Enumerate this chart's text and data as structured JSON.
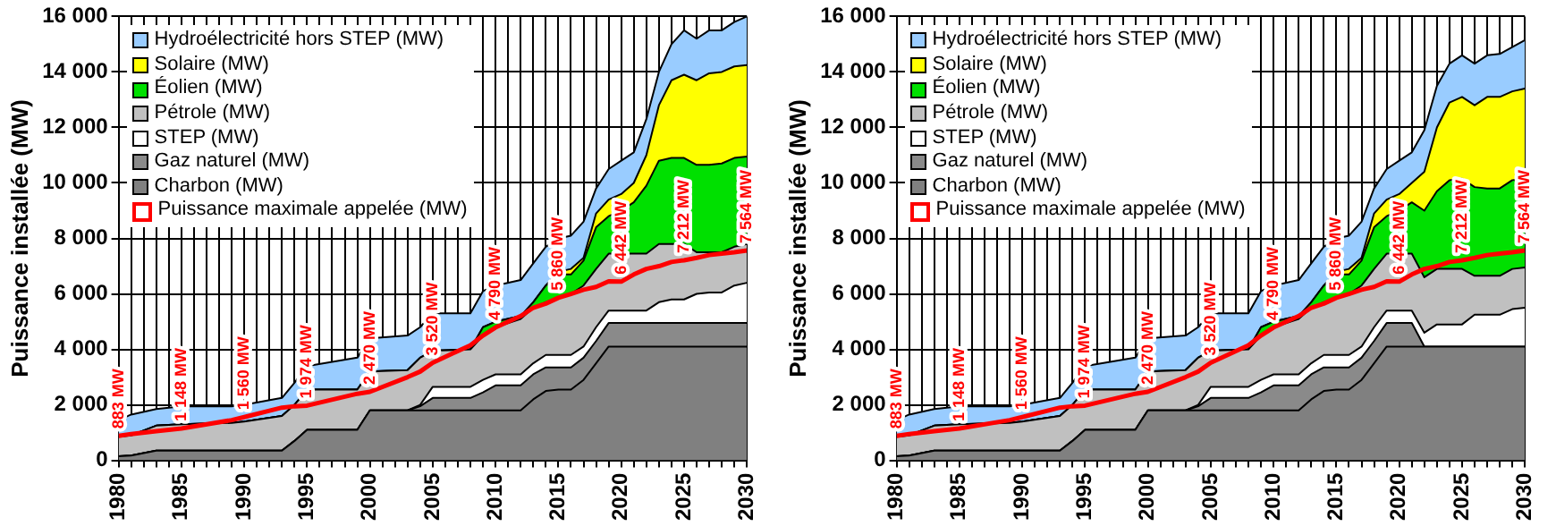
{
  "chart_data": [
    {
      "type": "area",
      "stacked": true,
      "grid": true,
      "legend": "top left",
      "ylabel": "Puissance installée (MW)",
      "x": [
        1980,
        1981,
        1983,
        1985,
        1989,
        1990,
        1993,
        1994,
        1995,
        1999,
        2000,
        2003,
        2004,
        2005,
        2008,
        2009,
        2010,
        2012,
        2013,
        2014,
        2015,
        2016,
        2017,
        2018,
        2019,
        2020,
        2021,
        2022,
        2023,
        2024,
        2025,
        2026,
        2027,
        2028,
        2029,
        2030
      ],
      "xlim": [
        1980,
        2030
      ],
      "xticks": [
        1980,
        {
          "value": 1981,
          "label": null
        },
        {
          "value": 1982,
          "label": null
        },
        {
          "value": 1983,
          "label": null
        },
        {
          "value": 1984,
          "label": null
        },
        1985,
        {
          "value": 1986,
          "label": null
        },
        {
          "value": 1987,
          "label": null
        },
        {
          "value": 1988,
          "label": null
        },
        {
          "value": 1989,
          "label": null
        },
        1990,
        {
          "value": 1991,
          "label": null
        },
        {
          "value": 1992,
          "label": null
        },
        {
          "value": 1993,
          "label": null
        },
        {
          "value": 1994,
          "label": null
        },
        1995,
        {
          "value": 1996,
          "label": null
        },
        {
          "value": 1997,
          "label": null
        },
        {
          "value": 1998,
          "label": null
        },
        {
          "value": 1999,
          "label": null
        },
        2000,
        {
          "value": 2001,
          "label": null
        },
        {
          "value": 2002,
          "label": null
        },
        {
          "value": 2003,
          "label": null
        },
        {
          "value": 2004,
          "label": null
        },
        2005,
        {
          "value": 2006,
          "label": null
        },
        {
          "value": 2007,
          "label": null
        },
        {
          "value": 2008,
          "label": null
        },
        {
          "value": 2009,
          "label": null
        },
        2010,
        {
          "value": 2011,
          "label": null
        },
        {
          "value": 2012,
          "label": null
        },
        {
          "value": 2013,
          "label": null
        },
        {
          "value": 2014,
          "label": null
        },
        2015,
        {
          "value": 2016,
          "label": null
        },
        {
          "value": 2017,
          "label": null
        },
        {
          "value": 2018,
          "label": null
        },
        {
          "value": 2019,
          "label": null
        },
        2020,
        {
          "value": 2021,
          "label": null
        },
        {
          "value": 2022,
          "label": null
        },
        {
          "value": 2023,
          "label": null
        },
        {
          "value": 2024,
          "label": null
        },
        2025,
        {
          "value": 2026,
          "label": null
        },
        {
          "value": 2027,
          "label": null
        },
        {
          "value": 2028,
          "label": null
        },
        {
          "value": 2029,
          "label": null
        },
        2030
      ],
      "ylim": [
        0,
        16000
      ],
      "yticks": [
        0,
        {
          "value": 2000,
          "label": "2 000"
        },
        {
          "value": 4000,
          "label": "4 000"
        },
        {
          "value": 6000,
          "label": "6 000"
        },
        {
          "value": 8000,
          "label": "8 000"
        },
        {
          "value": 10000,
          "label": "10 000"
        },
        {
          "value": 12000,
          "label": "12 000"
        },
        {
          "value": 14000,
          "label": "14 000"
        },
        {
          "value": 16000,
          "label": "16 000"
        }
      ],
      "series": [
        {
          "name": "Charbon (MW)",
          "type": "area",
          "color": "#808080",
          "values": [
            150,
            170,
            350,
            350,
            350,
            350,
            350,
            700,
            1100,
            1100,
            1800,
            1800,
            1800,
            1800,
            1800,
            1800,
            1800,
            1800,
            2200,
            2500,
            2550,
            2550,
            2900,
            3500,
            4100,
            4100,
            4100,
            4100,
            4100,
            4100,
            4100,
            4100,
            4100,
            4100,
            4100,
            4100
          ]
        },
        {
          "name": "Gaz naturel (MW)",
          "type": "area",
          "color": "#8a8a8a",
          "values": [
            0,
            0,
            0,
            0,
            0,
            0,
            0,
            0,
            0,
            0,
            0,
            0,
            150,
            450,
            450,
            650,
            900,
            900,
            900,
            850,
            800,
            800,
            800,
            800,
            850,
            850,
            850,
            850,
            850,
            850,
            850,
            850,
            850,
            850,
            850,
            850
          ]
        },
        {
          "name": "STEP (MW)",
          "type": "area",
          "color": "#ffffff",
          "values": [
            0,
            0,
            0,
            0,
            0,
            0,
            0,
            0,
            0,
            0,
            0,
            0,
            50,
            400,
            400,
            450,
            400,
            400,
            400,
            450,
            450,
            450,
            400,
            500,
            450,
            450,
            450,
            450,
            750,
            850,
            850,
            1050,
            1100,
            1100,
            1350,
            1450
          ]
        },
        {
          "name": "Pétrole (MW)",
          "type": "area",
          "color": "#c0c0c0",
          "values": [
            700,
            730,
            900,
            950,
            1000,
            1050,
            1250,
            1300,
            1450,
            1450,
            1400,
            1450,
            1700,
            1300,
            1350,
            1600,
            1700,
            2000,
            2000,
            1900,
            2050,
            2200,
            2200,
            2100,
            2050,
            2050,
            2050,
            2050,
            2100,
            2000,
            2000,
            1500,
            1450,
            1450,
            1400,
            1400
          ]
        },
        {
          "name": "Éolien (MW)",
          "type": "area",
          "color": "#00e000",
          "values": [
            0,
            0,
            0,
            0,
            0,
            0,
            0,
            0,
            0,
            0,
            0,
            0,
            0,
            0,
            0,
            300,
            200,
            100,
            200,
            600,
            850,
            700,
            900,
            1500,
            1350,
            1550,
            1850,
            2450,
            3000,
            3100,
            3100,
            3150,
            3150,
            3200,
            3200,
            3150
          ]
        },
        {
          "name": "Solaire (MW)",
          "type": "area",
          "color": "#ffff00",
          "values": [
            0,
            0,
            0,
            0,
            0,
            0,
            0,
            0,
            0,
            0,
            0,
            0,
            0,
            0,
            0,
            0,
            0,
            0,
            0,
            0,
            100,
            200,
            100,
            500,
            600,
            600,
            700,
            1100,
            2000,
            2800,
            3000,
            3050,
            3300,
            3300,
            3300,
            3300
          ]
        },
        {
          "name": "Hydroélectricité hors STEP (MW)",
          "type": "area",
          "color": "#99ccff",
          "values": [
            600,
            750,
            600,
            650,
            600,
            600,
            650,
            800,
            850,
            1150,
            1200,
            1250,
            1100,
            1350,
            1300,
            1300,
            1300,
            1300,
            1400,
            1400,
            1200,
            1200,
            1300,
            900,
            1100,
            1200,
            1100,
            1300,
            1200,
            1300,
            1600,
            1500,
            1550,
            1500,
            1600,
            1750
          ]
        },
        {
          "name": "Puissance maximale appelée (MW)",
          "type": "line",
          "color": "#ff0000",
          "values": [
            883,
            950,
            1050,
            1148,
            1450,
            1560,
            1900,
            1950,
            1974,
            2400,
            2470,
            3000,
            3200,
            3520,
            4150,
            4500,
            4790,
            5200,
            5500,
            5650,
            5860,
            6000,
            6150,
            6250,
            6450,
            6442,
            6700,
            6900,
            7000,
            7150,
            7212,
            7300,
            7400,
            7450,
            7500,
            7564
          ],
          "value_labels": [
            "883 MW",
            null,
            null,
            "1 148 MW",
            null,
            "1 560 MW",
            null,
            null,
            "1 974 MW",
            null,
            "2 470 MW",
            null,
            null,
            "3 520 MW",
            null,
            null,
            "4 790 MW",
            null,
            null,
            null,
            "5 860 MW",
            null,
            null,
            null,
            null,
            "6 442 MW",
            null,
            null,
            null,
            null,
            "7 212 MW",
            null,
            null,
            null,
            null,
            "7 564 MW"
          ]
        }
      ]
    },
    {
      "type": "area",
      "stacked": true,
      "grid": true,
      "legend": "top left",
      "ylabel": "Puissance installée (MW)",
      "x": [
        1980,
        1981,
        1983,
        1985,
        1989,
        1990,
        1993,
        1994,
        1995,
        1999,
        2000,
        2003,
        2004,
        2005,
        2008,
        2009,
        2010,
        2012,
        2013,
        2014,
        2015,
        2016,
        2017,
        2018,
        2019,
        2020,
        2021,
        2022,
        2023,
        2024,
        2025,
        2026,
        2027,
        2028,
        2029,
        2030
      ],
      "xlim": [
        1980,
        2030
      ],
      "xticks": [
        1980,
        {
          "value": 1981,
          "label": null
        },
        {
          "value": 1982,
          "label": null
        },
        {
          "value": 1983,
          "label": null
        },
        {
          "value": 1984,
          "label": null
        },
        1985,
        {
          "value": 1986,
          "label": null
        },
        {
          "value": 1987,
          "label": null
        },
        {
          "value": 1988,
          "label": null
        },
        {
          "value": 1989,
          "label": null
        },
        1990,
        {
          "value": 1991,
          "label": null
        },
        {
          "value": 1992,
          "label": null
        },
        {
          "value": 1993,
          "label": null
        },
        {
          "value": 1994,
          "label": null
        },
        1995,
        {
          "value": 1996,
          "label": null
        },
        {
          "value": 1997,
          "label": null
        },
        {
          "value": 1998,
          "label": null
        },
        {
          "value": 1999,
          "label": null
        },
        2000,
        {
          "value": 2001,
          "label": null
        },
        {
          "value": 2002,
          "label": null
        },
        {
          "value": 2003,
          "label": null
        },
        {
          "value": 2004,
          "label": null
        },
        2005,
        {
          "value": 2006,
          "label": null
        },
        {
          "value": 2007,
          "label": null
        },
        {
          "value": 2008,
          "label": null
        },
        {
          "value": 2009,
          "label": null
        },
        2010,
        {
          "value": 2011,
          "label": null
        },
        {
          "value": 2012,
          "label": null
        },
        {
          "value": 2013,
          "label": null
        },
        {
          "value": 2014,
          "label": null
        },
        2015,
        {
          "value": 2016,
          "label": null
        },
        {
          "value": 2017,
          "label": null
        },
        {
          "value": 2018,
          "label": null
        },
        {
          "value": 2019,
          "label": null
        },
        2020,
        {
          "value": 2021,
          "label": null
        },
        {
          "value": 2022,
          "label": null
        },
        {
          "value": 2023,
          "label": null
        },
        {
          "value": 2024,
          "label": null
        },
        2025,
        {
          "value": 2026,
          "label": null
        },
        {
          "value": 2027,
          "label": null
        },
        {
          "value": 2028,
          "label": null
        },
        {
          "value": 2029,
          "label": null
        },
        2030
      ],
      "ylim": [
        0,
        16000
      ],
      "yticks": [
        0,
        {
          "value": 2000,
          "label": "2 000"
        },
        {
          "value": 4000,
          "label": "4 000"
        },
        {
          "value": 6000,
          "label": "6 000"
        },
        {
          "value": 8000,
          "label": "8 000"
        },
        {
          "value": 10000,
          "label": "10 000"
        },
        {
          "value": 12000,
          "label": "12 000"
        },
        {
          "value": 14000,
          "label": "14 000"
        },
        {
          "value": 16000,
          "label": "16 000"
        }
      ],
      "series": [
        {
          "name": "Charbon (MW)",
          "type": "area",
          "color": "#808080",
          "values": [
            150,
            170,
            350,
            350,
            350,
            350,
            350,
            700,
            1100,
            1100,
            1800,
            1800,
            1800,
            1800,
            1800,
            1800,
            1800,
            1800,
            2200,
            2500,
            2550,
            2550,
            2900,
            3500,
            4100,
            4100,
            4100,
            4100,
            4100,
            4100,
            4100,
            4100,
            4100,
            4100,
            4100,
            4100
          ]
        },
        {
          "name": "Gaz naturel (MW)",
          "type": "area",
          "color": "#8a8a8a",
          "values": [
            0,
            0,
            0,
            0,
            0,
            0,
            0,
            0,
            0,
            0,
            0,
            0,
            150,
            450,
            450,
            650,
            900,
            900,
            900,
            850,
            800,
            800,
            800,
            800,
            850,
            850,
            850,
            0,
            0,
            0,
            0,
            0,
            0,
            0,
            0,
            0
          ]
        },
        {
          "name": "STEP (MW)",
          "type": "area",
          "color": "#ffffff",
          "values": [
            0,
            0,
            0,
            0,
            0,
            0,
            0,
            0,
            0,
            0,
            0,
            0,
            50,
            400,
            400,
            450,
            400,
            400,
            400,
            450,
            450,
            450,
            400,
            500,
            450,
            450,
            450,
            500,
            800,
            800,
            800,
            1150,
            1150,
            1150,
            1350,
            1400
          ]
        },
        {
          "name": "Pétrole (MW)",
          "type": "area",
          "color": "#c0c0c0",
          "values": [
            700,
            730,
            900,
            950,
            1000,
            1050,
            1250,
            1300,
            1450,
            1450,
            1400,
            1450,
            1700,
            1300,
            1350,
            1600,
            1700,
            2000,
            2000,
            1900,
            2050,
            2200,
            2200,
            2100,
            2050,
            2050,
            2050,
            2000,
            2000,
            2000,
            2000,
            1400,
            1400,
            1400,
            1450,
            1450
          ]
        },
        {
          "name": "Éolien (MW)",
          "type": "area",
          "color": "#00e000",
          "values": [
            0,
            0,
            0,
            0,
            0,
            0,
            0,
            0,
            0,
            0,
            0,
            0,
            0,
            0,
            0,
            300,
            200,
            100,
            200,
            600,
            850,
            700,
            900,
            1500,
            1350,
            1550,
            1850,
            2400,
            2800,
            3200,
            3250,
            3200,
            3150,
            3150,
            3200,
            3200
          ]
        },
        {
          "name": "Solaire (MW)",
          "type": "area",
          "color": "#ffff00",
          "values": [
            0,
            0,
            0,
            0,
            0,
            0,
            0,
            0,
            0,
            0,
            0,
            0,
            0,
            0,
            0,
            0,
            0,
            0,
            0,
            0,
            100,
            200,
            100,
            500,
            600,
            600,
            700,
            1400,
            2300,
            2800,
            2950,
            2950,
            3300,
            3300,
            3200,
            3250
          ]
        },
        {
          "name": "Hydroélectricité hors STEP (MW)",
          "type": "area",
          "color": "#99ccff",
          "values": [
            600,
            750,
            600,
            650,
            600,
            600,
            650,
            800,
            850,
            1150,
            1200,
            1250,
            1100,
            1350,
            1300,
            1300,
            1300,
            1300,
            1400,
            1400,
            1200,
            1200,
            1300,
            900,
            1100,
            1200,
            1100,
            1500,
            1500,
            1400,
            1500,
            1500,
            1500,
            1550,
            1600,
            1750
          ]
        },
        {
          "name": "Puissance maximale appelée (MW)",
          "type": "line",
          "color": "#ff0000",
          "values": [
            883,
            950,
            1050,
            1148,
            1450,
            1560,
            1900,
            1950,
            1974,
            2400,
            2470,
            3000,
            3200,
            3520,
            4150,
            4500,
            4790,
            5200,
            5500,
            5650,
            5860,
            6000,
            6150,
            6250,
            6450,
            6442,
            6700,
            6900,
            7000,
            7150,
            7212,
            7300,
            7400,
            7450,
            7500,
            7564
          ],
          "value_labels": [
            "883 MW",
            null,
            null,
            "1 148 MW",
            null,
            "1 560 MW",
            null,
            null,
            "1 974 MW",
            null,
            "2 470 MW",
            null,
            null,
            "3 520 MW",
            null,
            null,
            "4 790 MW",
            null,
            null,
            null,
            "5 860 MW",
            null,
            null,
            null,
            null,
            "6 442 MW",
            null,
            null,
            null,
            null,
            "7 212 MW",
            null,
            null,
            null,
            null,
            "7 564 MW"
          ]
        }
      ]
    }
  ]
}
